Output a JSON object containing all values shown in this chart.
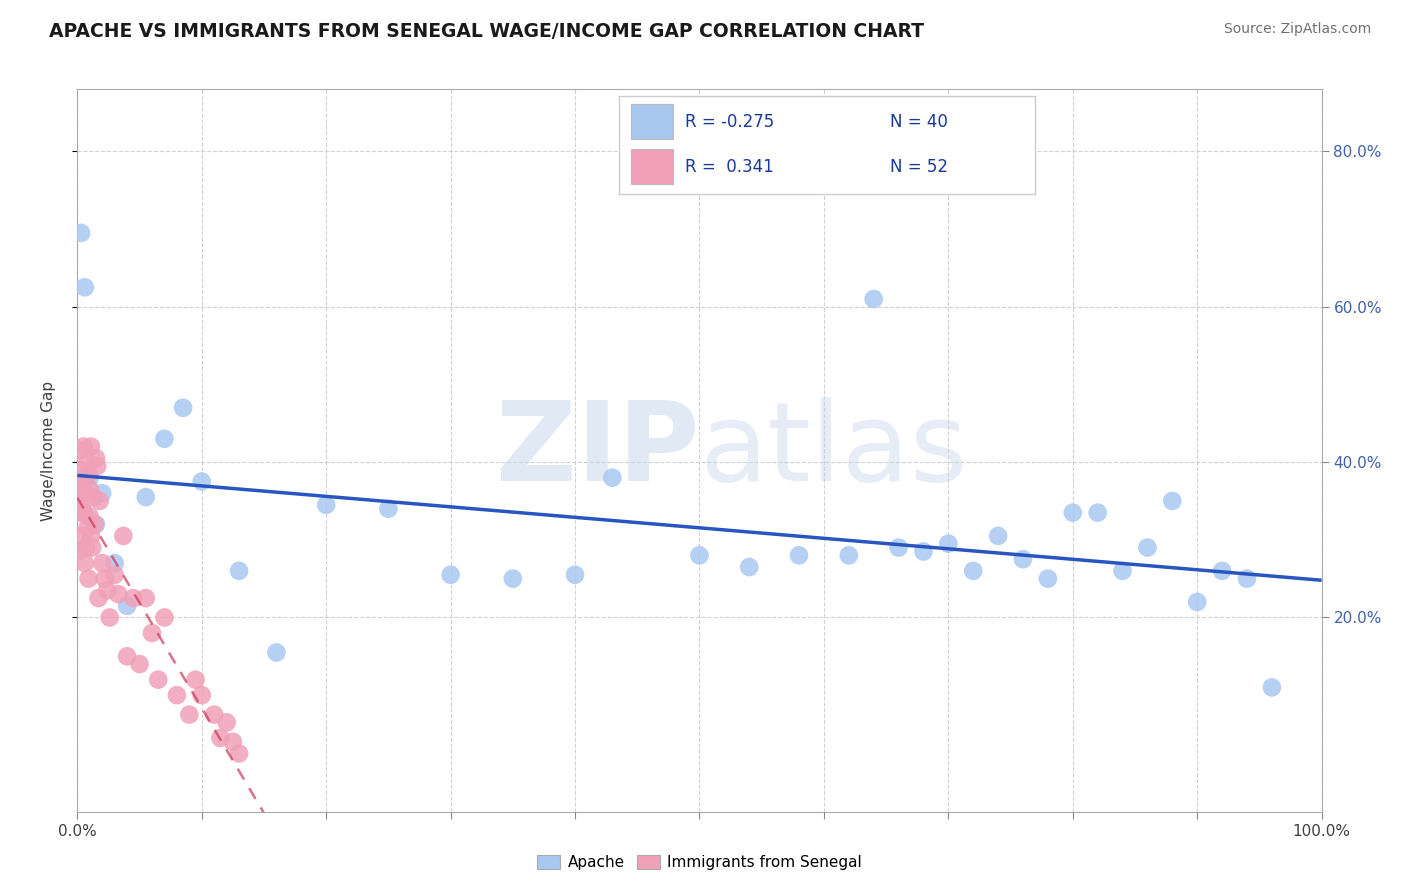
{
  "title": "APACHE VS IMMIGRANTS FROM SENEGAL WAGE/INCOME GAP CORRELATION CHART",
  "source": "Source: ZipAtlas.com",
  "ylabel": "Wage/Income Gap",
  "xlim": [
    0.0,
    1.0
  ],
  "ylim": [
    -0.05,
    0.88
  ],
  "xtick_positions": [
    0.0,
    0.1,
    0.2,
    0.3,
    0.4,
    0.5,
    0.6,
    0.7,
    0.8,
    0.9,
    1.0
  ],
  "xtick_labels_sparse": {
    "0.0": "0.0%",
    "1.0": "100.0%"
  },
  "yticks_right": [
    0.2,
    0.4,
    0.6,
    0.8
  ],
  "ytick_labels_right": [
    "20.0%",
    "40.0%",
    "60.0%",
    "80.0%"
  ],
  "apache_R": -0.275,
  "apache_N": 40,
  "senegal_R": 0.341,
  "senegal_N": 52,
  "apache_color": "#a8c8f0",
  "senegal_color": "#f0a0b8",
  "apache_line_color": "#2855c0",
  "senegal_line_color": "#d04060",
  "apache_x": [
    0.003,
    0.006,
    0.01,
    0.015,
    0.02,
    0.03,
    0.04,
    0.055,
    0.07,
    0.085,
    0.1,
    0.13,
    0.16,
    0.2,
    0.25,
    0.3,
    0.35,
    0.4,
    0.43,
    0.5,
    0.54,
    0.58,
    0.62,
    0.64,
    0.66,
    0.68,
    0.7,
    0.72,
    0.74,
    0.76,
    0.78,
    0.8,
    0.82,
    0.84,
    0.86,
    0.88,
    0.9,
    0.92,
    0.94,
    0.96
  ],
  "apache_y": [
    0.695,
    0.625,
    0.38,
    0.32,
    0.36,
    0.27,
    0.215,
    0.355,
    0.43,
    0.47,
    0.375,
    0.26,
    0.155,
    0.345,
    0.34,
    0.255,
    0.25,
    0.255,
    0.38,
    0.28,
    0.265,
    0.28,
    0.28,
    0.61,
    0.29,
    0.285,
    0.295,
    0.26,
    0.305,
    0.275,
    0.25,
    0.335,
    0.335,
    0.26,
    0.29,
    0.35,
    0.22,
    0.26,
    0.25,
    0.11
  ],
  "senegal_x": [
    0.001,
    0.001,
    0.002,
    0.002,
    0.003,
    0.003,
    0.004,
    0.004,
    0.005,
    0.005,
    0.006,
    0.006,
    0.007,
    0.007,
    0.008,
    0.008,
    0.009,
    0.009,
    0.01,
    0.01,
    0.011,
    0.011,
    0.012,
    0.013,
    0.014,
    0.015,
    0.016,
    0.017,
    0.018,
    0.02,
    0.022,
    0.024,
    0.026,
    0.03,
    0.033,
    0.037,
    0.04,
    0.045,
    0.05,
    0.055,
    0.06,
    0.065,
    0.07,
    0.08,
    0.09,
    0.095,
    0.1,
    0.11,
    0.115,
    0.12,
    0.125,
    0.13
  ],
  "senegal_y": [
    0.285,
    0.36,
    0.335,
    0.415,
    0.38,
    0.39,
    0.34,
    0.305,
    0.335,
    0.42,
    0.38,
    0.27,
    0.36,
    0.29,
    0.4,
    0.315,
    0.25,
    0.385,
    0.365,
    0.33,
    0.42,
    0.305,
    0.29,
    0.355,
    0.32,
    0.405,
    0.395,
    0.225,
    0.35,
    0.27,
    0.25,
    0.235,
    0.2,
    0.255,
    0.23,
    0.305,
    0.15,
    0.225,
    0.14,
    0.225,
    0.18,
    0.12,
    0.2,
    0.1,
    0.075,
    0.12,
    0.1,
    0.075,
    0.045,
    0.065,
    0.04,
    0.025
  ],
  "watermark_zip": "ZIP",
  "watermark_atlas": "atlas",
  "grid_color": "#cccccc",
  "bg_color": "#ffffff"
}
